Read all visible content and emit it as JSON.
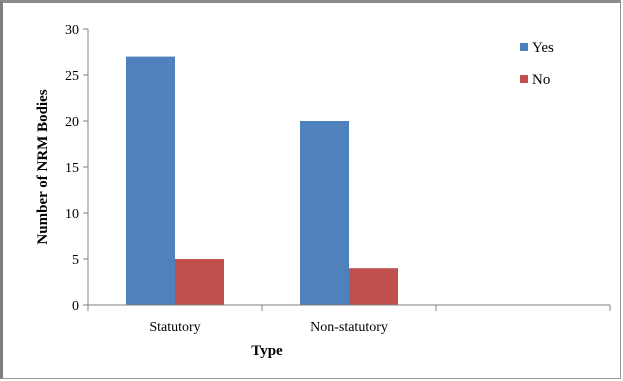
{
  "chart_data": {
    "type": "bar",
    "categories": [
      "Statutory",
      "Non-statutory",
      ""
    ],
    "series": [
      {
        "name": "Yes",
        "values": [
          27,
          20,
          null
        ],
        "color": "#4f81bd"
      },
      {
        "name": "No",
        "values": [
          5,
          4,
          null
        ],
        "color": "#c0504d"
      }
    ],
    "xlabel": "Type",
    "ylabel": "Number of NRM Bodies",
    "ylim": [
      0,
      30
    ],
    "yticks": [
      0,
      5,
      10,
      15,
      20,
      25,
      30
    ],
    "grid": false,
    "legend_position": "top-right"
  }
}
